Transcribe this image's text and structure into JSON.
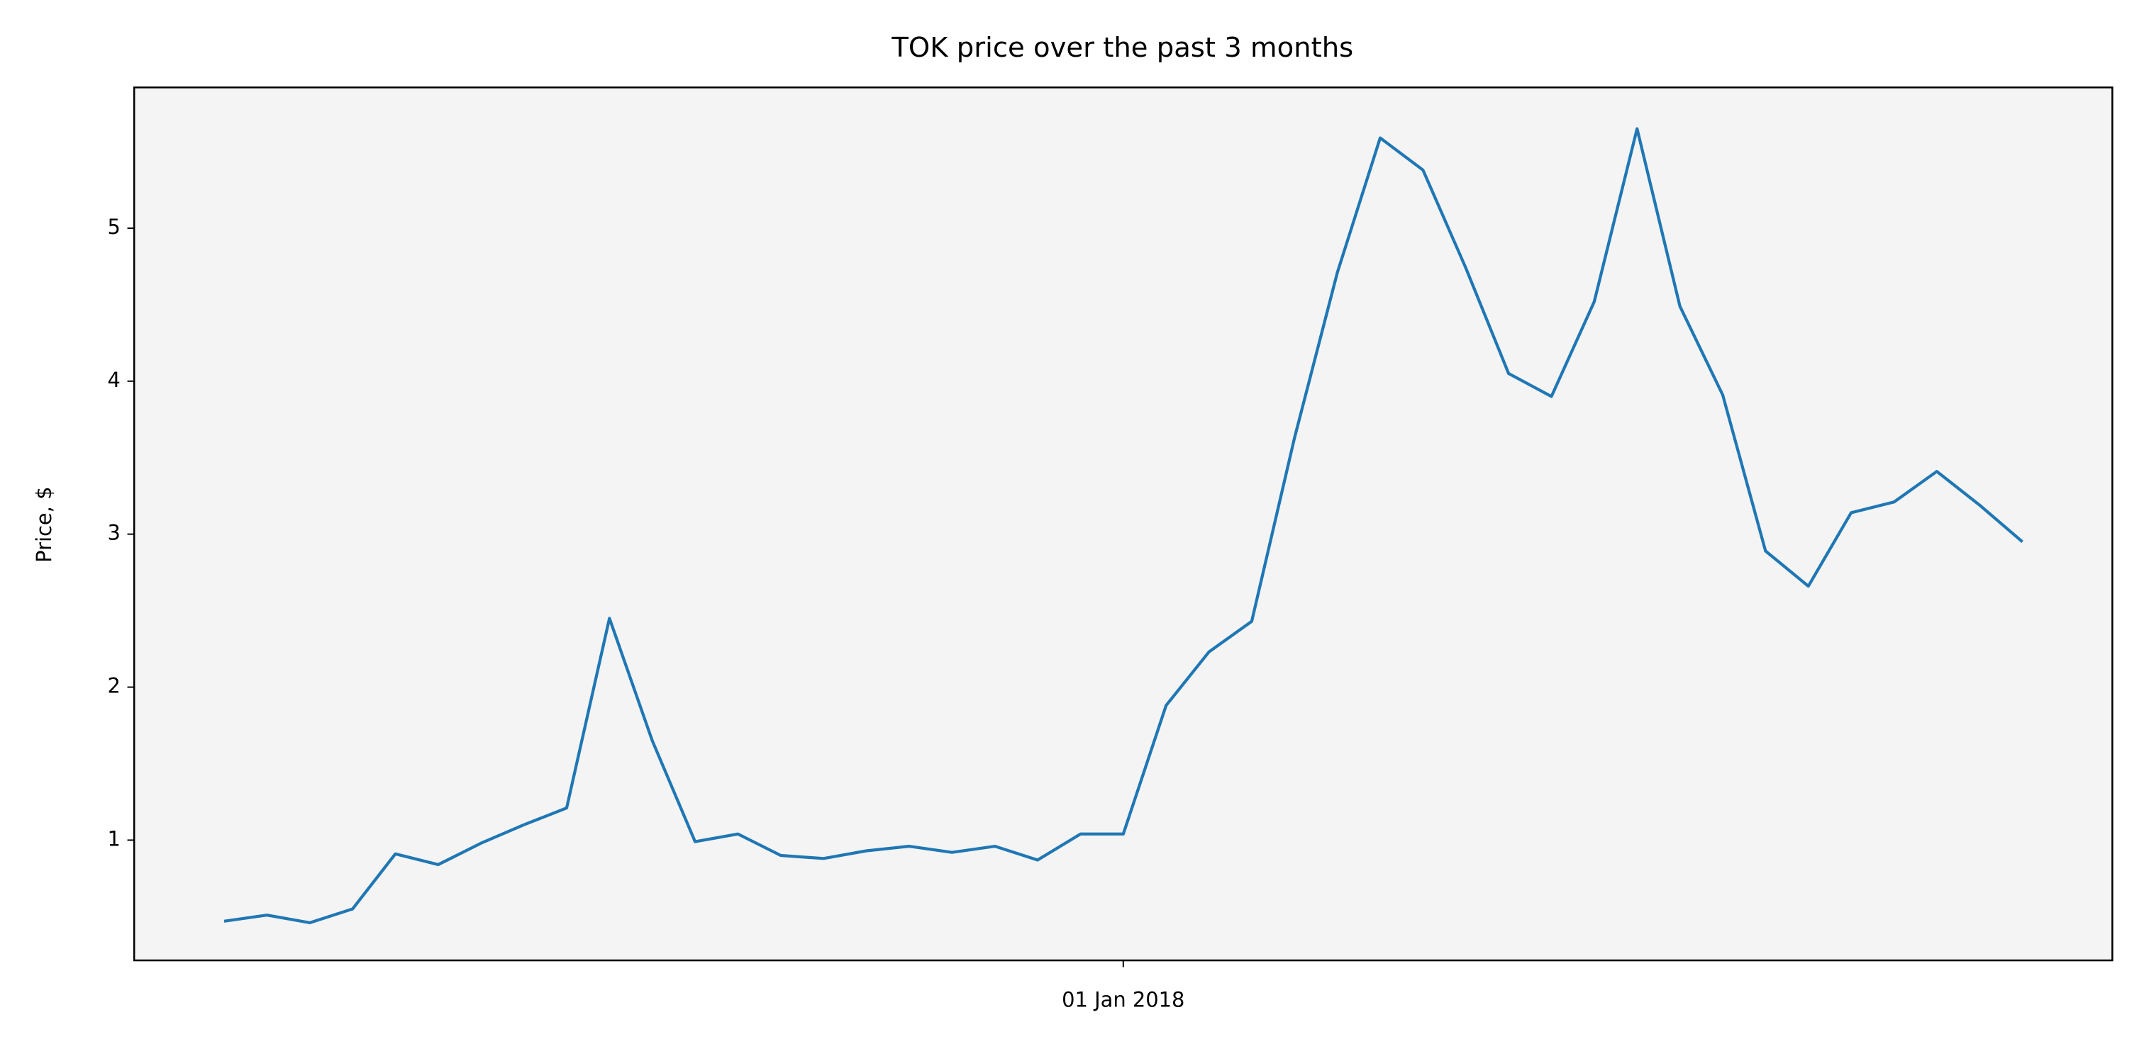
{
  "chart_data": {
    "type": "line",
    "title": "TOK price over the past 3 months",
    "y_label": "Price, $",
    "x": [
      "2017-11-20T00:00",
      "2017-11-22T00:00",
      "2017-11-24T00:00",
      "2017-11-26T00:00",
      "2017-11-28T00:00",
      "2017-11-30T00:00",
      "2017-12-02T00:00",
      "2017-12-04T00:00",
      "2017-12-06T00:00",
      "2017-12-08T00:00",
      "2017-12-10T00:00",
      "2017-12-12T00:00",
      "2017-12-14T00:00",
      "2017-12-16T00:00",
      "2017-12-18T00:00",
      "2017-12-20T00:00",
      "2017-12-22T00:00",
      "2017-12-24T00:00",
      "2017-12-26T00:00",
      "2017-12-28T00:00",
      "2017-12-30T00:00",
      "2018-01-01T00:00",
      "2018-01-03T00:00",
      "2018-01-05T00:00",
      "2018-01-07T00:00",
      "2018-01-09T00:00",
      "2018-01-11T00:00",
      "2018-01-13T00:00",
      "2018-01-15T00:00",
      "2018-01-17T00:00",
      "2018-01-19T00:00",
      "2018-01-21T00:00",
      "2018-01-23T00:00",
      "2018-01-25T00:00",
      "2018-01-27T00:00",
      "2018-01-29T00:00",
      "2018-01-31T00:00",
      "2018-02-02T00:00",
      "2018-02-04T00:00",
      "2018-02-06T00:00",
      "2018-02-08T00:00",
      "2018-02-10T00:00",
      "2018-02-12T00:00"
    ],
    "series": [
      {
        "name": "TOK",
        "color": "#1f77b4",
        "values": [
          0.47,
          0.51,
          0.46,
          0.55,
          0.91,
          0.84,
          0.98,
          1.1,
          1.21,
          2.45,
          1.65,
          0.99,
          1.04,
          0.9,
          0.88,
          0.93,
          0.96,
          0.92,
          0.96,
          0.87,
          1.04,
          1.04,
          1.88,
          2.23,
          2.43,
          3.63,
          4.71,
          5.59,
          5.38,
          4.74,
          4.05,
          3.9,
          4.52,
          5.65,
          4.49,
          3.91,
          2.89,
          2.66,
          3.14,
          3.21,
          3.41,
          3.19,
          2.95
        ]
      }
    ],
    "xlim": [
      "2017-11-15T19:12",
      "2018-02-16T04:48"
    ],
    "xticks": [
      {
        "value": "2018-01-01T00:00",
        "label": "01 Jan 2018"
      }
    ],
    "ylim": [
      0.214,
      5.92
    ],
    "yticks": [
      1,
      2,
      3,
      4,
      5
    ],
    "plot_background": "#f4f4f4",
    "grid": false
  }
}
